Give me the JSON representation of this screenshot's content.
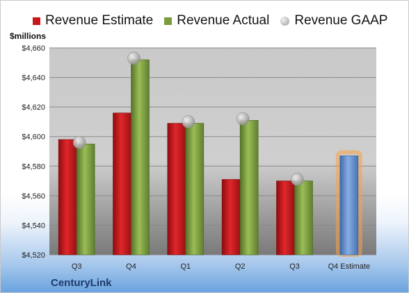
{
  "chart_data": {
    "type": "bar",
    "categories": [
      "Q3",
      "Q4",
      "Q1",
      "Q2",
      "Q3",
      "Q4 Estimate"
    ],
    "series": [
      {
        "name": "Revenue Estimate",
        "kind": "bar",
        "color": "#c8171b",
        "values": [
          4598,
          4616,
          4609,
          4571,
          4570,
          null
        ]
      },
      {
        "name": "Revenue Actual",
        "kind": "bar",
        "color": "#7a9c3c",
        "values": [
          4595,
          4652,
          4609,
          4611,
          4570,
          null
        ]
      },
      {
        "name": "Revenue GAAP",
        "kind": "marker",
        "color": "#b5b5b5",
        "values": [
          4596,
          4653,
          4610,
          4612,
          4571,
          null
        ]
      },
      {
        "name": "Q4 Estimate",
        "kind": "bar",
        "color": "#5b86c6",
        "highlight": "#f7a347",
        "values": [
          null,
          null,
          null,
          null,
          null,
          4587
        ]
      }
    ],
    "ylabel": "$millions",
    "ylim": [
      4520,
      4660
    ],
    "yticks": [
      4520,
      4540,
      4560,
      4580,
      4600,
      4620,
      4640,
      4660
    ],
    "ytick_labels": [
      "$4,520",
      "$4,540",
      "$4,560",
      "$4,580",
      "$4,600",
      "$4,620",
      "$4,640",
      "$4,660"
    ],
    "grid": true,
    "legend": "top"
  },
  "legend": [
    {
      "label": "Revenue Estimate",
      "color": "#c8171b",
      "shape": "square"
    },
    {
      "label": "Revenue Actual",
      "color": "#7a9c3c",
      "shape": "square"
    },
    {
      "label": "Revenue GAAP",
      "color": "#b5b5b5",
      "shape": "circle"
    }
  ],
  "unit_label": "$millions",
  "brand": "CenturyLink"
}
